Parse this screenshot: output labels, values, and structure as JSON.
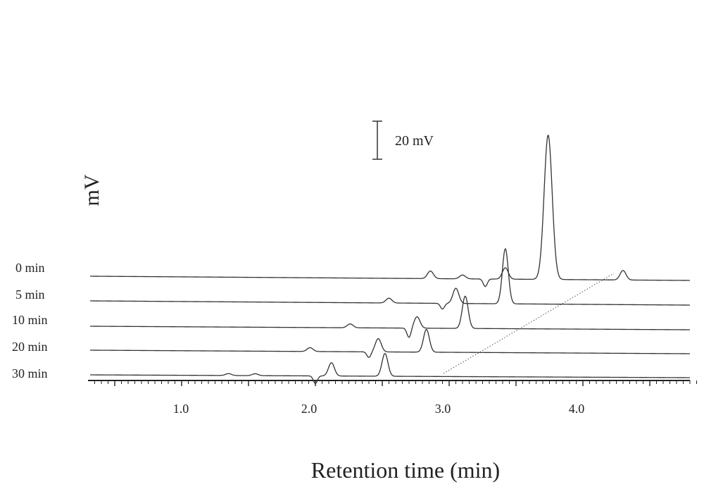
{
  "chart_data": {
    "type": "line",
    "title": "",
    "xlabel": "Retention time (min)",
    "ylabel": "mV",
    "x_ticks": [
      "1.0",
      "2.0",
      "3.0",
      "4.0"
    ],
    "xlim": [
      0.35,
      4.85
    ],
    "scale_bar": {
      "label": "20 mV",
      "value": 20
    },
    "grid": false,
    "series": [
      {
        "name": "0 min",
        "baseline": 0,
        "peaks": [
          [
            2.86,
            4
          ],
          [
            3.1,
            2
          ],
          [
            3.42,
            6
          ],
          [
            3.74,
            76
          ],
          [
            4.3,
            5
          ]
        ],
        "dips": [
          [
            3.27,
            4
          ]
        ]
      },
      {
        "name": "5 min",
        "baseline": 0,
        "peaks": [
          [
            2.55,
            2.5
          ],
          [
            3.05,
            8
          ],
          [
            3.42,
            29
          ]
        ],
        "dips": [
          [
            2.95,
            3
          ]
        ]
      },
      {
        "name": "10 min",
        "baseline": 0,
        "peaks": [
          [
            2.26,
            2
          ],
          [
            2.76,
            6
          ],
          [
            3.12,
            17
          ]
        ],
        "dips": [
          [
            2.7,
            5
          ]
        ]
      },
      {
        "name": "20 min",
        "baseline": 0,
        "peaks": [
          [
            1.96,
            2
          ],
          [
            2.47,
            7
          ],
          [
            2.83,
            12
          ]
        ],
        "dips": [
          [
            2.4,
            3
          ]
        ]
      },
      {
        "name": "30 min",
        "baseline": 0,
        "peaks": [
          [
            1.35,
            1
          ],
          [
            1.55,
            1
          ],
          [
            2.12,
            7
          ],
          [
            2.52,
            12
          ]
        ],
        "dips": [
          [
            2.0,
            4
          ]
        ]
      }
    ]
  }
}
